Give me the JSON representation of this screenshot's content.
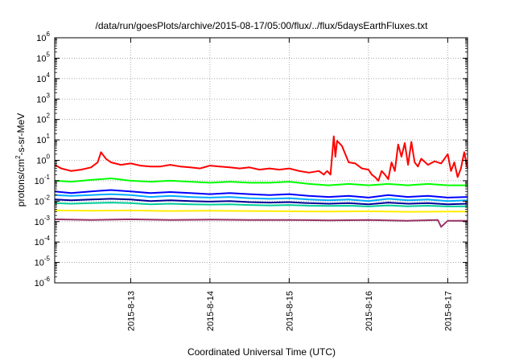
{
  "chart_data": {
    "type": "line",
    "title": "/data/run/goesPlots/archive/2015-08-17/05:00/flux/../flux/5daysEarthFluxes.txt",
    "xlabel": "Coordinated Universal Time (UTC)",
    "ylabel": {
      "base": "protons/cm",
      "sup": "2",
      "rest": "-s-sr-MeV"
    },
    "xlim": [
      "2015-08-12T01:00",
      "2015-08-17T06:00"
    ],
    "ylim": [
      1e-06,
      1000000.0
    ],
    "yscale": "log",
    "grid": true,
    "x_ticks": [
      "2015-8-13",
      "2015-8-14",
      "2015-8-15",
      "2015-8-16",
      "2015-8-17"
    ],
    "y_ticks": [
      {
        "base": "10",
        "exp": "6"
      },
      {
        "base": "10",
        "exp": "5"
      },
      {
        "base": "10",
        "exp": "4"
      },
      {
        "base": "10",
        "exp": "3"
      },
      {
        "base": "10",
        "exp": "2"
      },
      {
        "base": "10",
        "exp": "1"
      },
      {
        "base": "10",
        "exp": "0"
      },
      {
        "base": "10",
        "exp": "-1"
      },
      {
        "base": "10",
        "exp": "-2"
      },
      {
        "base": "10",
        "exp": "-3"
      },
      {
        "base": "10",
        "exp": "-4"
      },
      {
        "base": "10",
        "exp": "-5"
      },
      {
        "base": "10",
        "exp": "-6"
      }
    ],
    "series": [
      {
        "color": "#ff0000",
        "x": [
          "2015-08-12T01:00",
          "2015-08-12T03:00",
          "2015-08-12T06:00",
          "2015-08-12T09:00",
          "2015-08-12T12:00",
          "2015-08-12T14:00",
          "2015-08-12T15:00",
          "2015-08-12T16:30",
          "2015-08-12T18:00",
          "2015-08-12T21:00",
          "2015-08-13T00:00",
          "2015-08-13T03:00",
          "2015-08-13T06:00",
          "2015-08-13T09:00",
          "2015-08-13T12:00",
          "2015-08-13T15:00",
          "2015-08-13T18:00",
          "2015-08-13T21:00",
          "2015-08-14T00:00",
          "2015-08-14T03:00",
          "2015-08-14T06:00",
          "2015-08-14T09:00",
          "2015-08-14T12:00",
          "2015-08-14T15:00",
          "2015-08-14T18:00",
          "2015-08-14T21:00",
          "2015-08-15T00:00",
          "2015-08-15T03:00",
          "2015-08-15T06:00",
          "2015-08-15T09:00",
          "2015-08-15T10:30",
          "2015-08-15T11:00",
          "2015-08-15T11:30",
          "2015-08-15T12:30",
          "2015-08-15T13:30",
          "2015-08-15T14:00",
          "2015-08-15T14:30",
          "2015-08-15T16:00",
          "2015-08-15T18:00",
          "2015-08-15T20:00",
          "2015-08-15T22:00",
          "2015-08-16T00:00",
          "2015-08-16T01:00",
          "2015-08-16T02:00",
          "2015-08-16T03:00",
          "2015-08-16T04:00",
          "2015-08-16T05:00",
          "2015-08-16T06:00",
          "2015-08-16T07:00",
          "2015-08-16T08:00",
          "2015-08-16T09:00",
          "2015-08-16T10:00",
          "2015-08-16T11:00",
          "2015-08-16T12:00",
          "2015-08-16T13:00",
          "2015-08-16T14:00",
          "2015-08-16T15:00",
          "2015-08-16T16:00",
          "2015-08-16T18:00",
          "2015-08-16T20:00",
          "2015-08-16T22:00",
          "2015-08-17T00:00",
          "2015-08-17T01:00",
          "2015-08-17T02:00",
          "2015-08-17T03:00",
          "2015-08-17T04:00",
          "2015-08-17T05:00",
          "2015-08-17T06:00"
        ],
        "y": [
          0.6,
          0.4,
          0.3,
          0.35,
          0.45,
          0.8,
          2.5,
          1.2,
          0.8,
          0.6,
          0.7,
          0.55,
          0.5,
          0.5,
          0.6,
          0.5,
          0.45,
          0.4,
          0.55,
          0.5,
          0.45,
          0.4,
          0.45,
          0.35,
          0.4,
          0.35,
          0.4,
          0.3,
          0.25,
          0.3,
          0.2,
          0.25,
          0.3,
          0.2,
          15,
          1.5,
          9,
          5,
          0.8,
          0.7,
          0.4,
          0.35,
          0.2,
          0.15,
          0.1,
          0.3,
          0.2,
          0.12,
          0.8,
          0.3,
          6,
          1.5,
          7,
          0.6,
          8,
          0.8,
          0.5,
          1.2,
          0.6,
          0.9,
          0.7,
          2.0,
          0.3,
          0.8,
          0.15,
          0.4,
          2.5,
          0.4
        ]
      },
      {
        "color": "#00ff00",
        "x": [
          "2015-08-12T01:00",
          "2015-08-12T06:00",
          "2015-08-12T12:00",
          "2015-08-12T18:00",
          "2015-08-13T00:00",
          "2015-08-13T06:00",
          "2015-08-13T12:00",
          "2015-08-13T18:00",
          "2015-08-14T00:00",
          "2015-08-14T06:00",
          "2015-08-14T12:00",
          "2015-08-14T18:00",
          "2015-08-15T00:00",
          "2015-08-15T06:00",
          "2015-08-15T12:00",
          "2015-08-15T18:00",
          "2015-08-16T00:00",
          "2015-08-16T06:00",
          "2015-08-16T12:00",
          "2015-08-16T18:00",
          "2015-08-17T00:00",
          "2015-08-17T06:00"
        ],
        "y": [
          0.1,
          0.09,
          0.11,
          0.13,
          0.1,
          0.09,
          0.1,
          0.09,
          0.08,
          0.09,
          0.08,
          0.08,
          0.09,
          0.07,
          0.06,
          0.07,
          0.06,
          0.07,
          0.06,
          0.07,
          0.06,
          0.06
        ]
      },
      {
        "color": "#0000ff",
        "x": [
          "2015-08-12T01:00",
          "2015-08-12T06:00",
          "2015-08-12T12:00",
          "2015-08-12T18:00",
          "2015-08-13T00:00",
          "2015-08-13T06:00",
          "2015-08-13T12:00",
          "2015-08-13T18:00",
          "2015-08-14T00:00",
          "2015-08-14T06:00",
          "2015-08-14T12:00",
          "2015-08-14T18:00",
          "2015-08-15T00:00",
          "2015-08-15T06:00",
          "2015-08-15T12:00",
          "2015-08-15T18:00",
          "2015-08-16T00:00",
          "2015-08-16T06:00",
          "2015-08-16T12:00",
          "2015-08-16T18:00",
          "2015-08-17T00:00",
          "2015-08-17T06:00"
        ],
        "y": [
          0.03,
          0.025,
          0.03,
          0.035,
          0.03,
          0.025,
          0.028,
          0.025,
          0.022,
          0.025,
          0.022,
          0.02,
          0.022,
          0.018,
          0.016,
          0.018,
          0.015,
          0.02,
          0.016,
          0.018,
          0.015,
          0.016
        ]
      },
      {
        "color": "#00aaff",
        "x": [
          "2015-08-12T01:00",
          "2015-08-12T06:00",
          "2015-08-12T12:00",
          "2015-08-12T18:00",
          "2015-08-13T00:00",
          "2015-08-13T06:00",
          "2015-08-13T12:00",
          "2015-08-13T18:00",
          "2015-08-14T00:00",
          "2015-08-14T06:00",
          "2015-08-14T12:00",
          "2015-08-14T18:00",
          "2015-08-15T00:00",
          "2015-08-15T06:00",
          "2015-08-15T12:00",
          "2015-08-15T18:00",
          "2015-08-16T00:00",
          "2015-08-16T06:00",
          "2015-08-16T12:00",
          "2015-08-16T18:00",
          "2015-08-17T00:00",
          "2015-08-17T06:00"
        ],
        "y": [
          0.02,
          0.018,
          0.02,
          0.022,
          0.02,
          0.016,
          0.018,
          0.016,
          0.015,
          0.016,
          0.014,
          0.013,
          0.014,
          0.012,
          0.011,
          0.012,
          0.01,
          0.013,
          0.011,
          0.012,
          0.01,
          0.011
        ]
      },
      {
        "color": "#000099",
        "x": [
          "2015-08-12T01:00",
          "2015-08-12T06:00",
          "2015-08-12T12:00",
          "2015-08-12T18:00",
          "2015-08-13T00:00",
          "2015-08-13T06:00",
          "2015-08-13T12:00",
          "2015-08-13T18:00",
          "2015-08-14T00:00",
          "2015-08-14T06:00",
          "2015-08-14T12:00",
          "2015-08-14T18:00",
          "2015-08-15T00:00",
          "2015-08-15T06:00",
          "2015-08-15T12:00",
          "2015-08-15T18:00",
          "2015-08-16T00:00",
          "2015-08-16T06:00",
          "2015-08-16T12:00",
          "2015-08-16T18:00",
          "2015-08-17T00:00",
          "2015-08-17T06:00"
        ],
        "y": [
          0.012,
          0.011,
          0.012,
          0.013,
          0.012,
          0.01,
          0.011,
          0.01,
          0.0095,
          0.01,
          0.009,
          0.0085,
          0.009,
          0.008,
          0.0075,
          0.008,
          0.007,
          0.0085,
          0.0075,
          0.008,
          0.007,
          0.0075
        ]
      },
      {
        "color": "#00cc99",
        "x": [
          "2015-08-12T01:00",
          "2015-08-12T06:00",
          "2015-08-12T12:00",
          "2015-08-12T18:00",
          "2015-08-13T00:00",
          "2015-08-13T06:00",
          "2015-08-13T12:00",
          "2015-08-13T18:00",
          "2015-08-14T00:00",
          "2015-08-14T06:00",
          "2015-08-14T12:00",
          "2015-08-14T18:00",
          "2015-08-15T00:00",
          "2015-08-15T06:00",
          "2015-08-15T12:00",
          "2015-08-15T18:00",
          "2015-08-16T00:00",
          "2015-08-16T06:00",
          "2015-08-16T12:00",
          "2015-08-16T18:00",
          "2015-08-17T00:00",
          "2015-08-17T06:00"
        ],
        "y": [
          0.008,
          0.0075,
          0.008,
          0.0085,
          0.008,
          0.007,
          0.0075,
          0.007,
          0.0068,
          0.007,
          0.0065,
          0.0062,
          0.0065,
          0.006,
          0.0058,
          0.006,
          0.0055,
          0.0062,
          0.0056,
          0.006,
          0.0055,
          0.0056
        ]
      },
      {
        "color": "#ffee00",
        "x": [
          "2015-08-12T01:00",
          "2015-08-12T12:00",
          "2015-08-13T00:00",
          "2015-08-13T12:00",
          "2015-08-14T00:00",
          "2015-08-14T12:00",
          "2015-08-15T00:00",
          "2015-08-15T12:00",
          "2015-08-16T00:00",
          "2015-08-16T12:00",
          "2015-08-17T00:00",
          "2015-08-17T06:00"
        ],
        "y": [
          0.0035,
          0.0034,
          0.0035,
          0.0033,
          0.0034,
          0.0033,
          0.0032,
          0.0031,
          0.0032,
          0.003,
          0.0031,
          0.0031
        ]
      },
      {
        "color": "#993366",
        "x": [
          "2015-08-12T01:00",
          "2015-08-12T12:00",
          "2015-08-13T00:00",
          "2015-08-13T12:00",
          "2015-08-14T00:00",
          "2015-08-14T12:00",
          "2015-08-15T00:00",
          "2015-08-15T12:00",
          "2015-08-16T00:00",
          "2015-08-16T12:00",
          "2015-08-16T21:00",
          "2015-08-16T22:00",
          "2015-08-17T00:00",
          "2015-08-17T06:00"
        ],
        "y": [
          0.0013,
          0.0012,
          0.0013,
          0.0012,
          0.00125,
          0.0012,
          0.0012,
          0.00115,
          0.0012,
          0.0011,
          0.0012,
          0.00055,
          0.0011,
          0.0011
        ]
      }
    ]
  }
}
